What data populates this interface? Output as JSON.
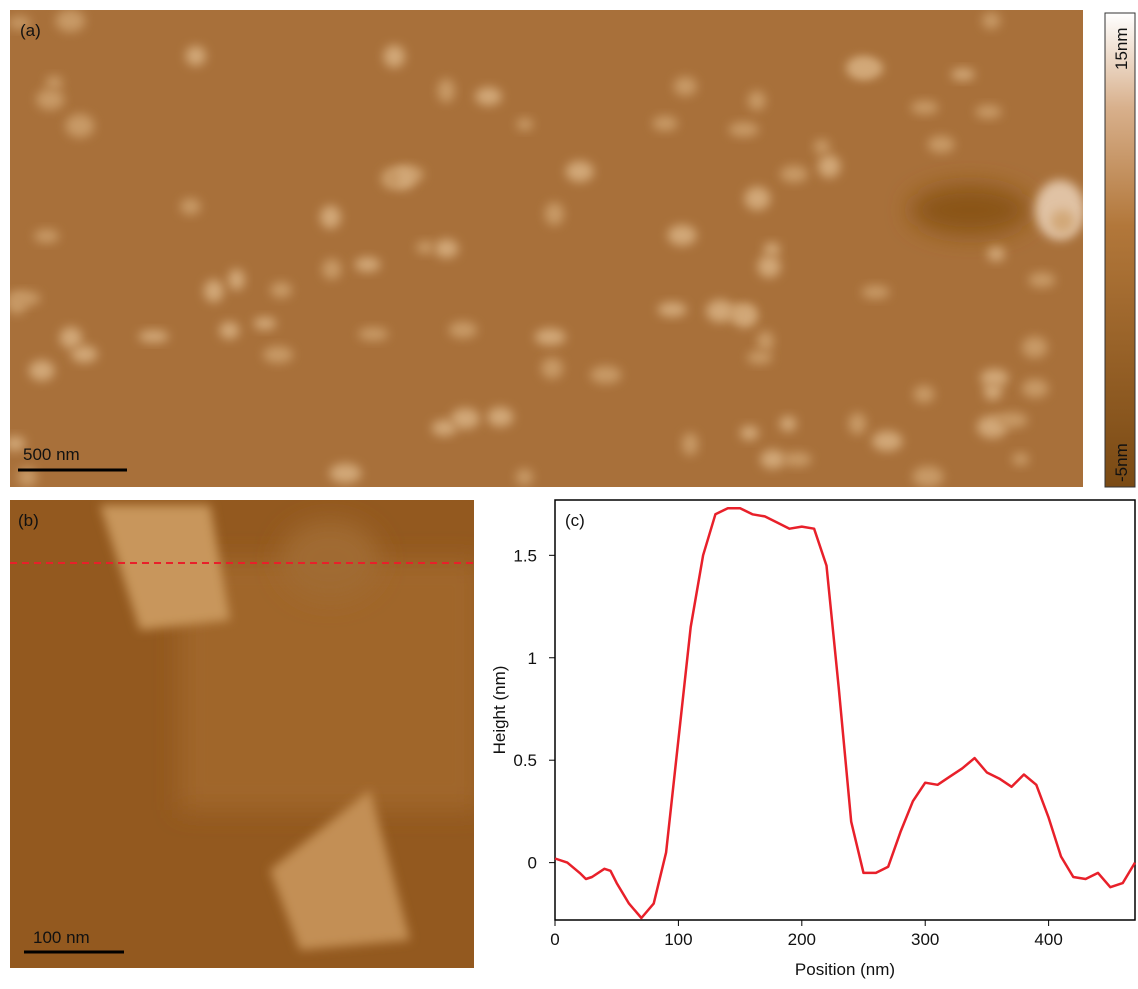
{
  "panels": {
    "a": {
      "label": "(a)",
      "scale_bar": "500 nm"
    },
    "b": {
      "label": "(b)",
      "scale_bar": "100 nm"
    }
  },
  "colorbar": {
    "max_label": "15nm",
    "min_label": "-5nm"
  },
  "chart_data": {
    "type": "line",
    "label": "(c)",
    "xlabel": "Position (nm)",
    "ylabel": "Height (nm)",
    "x": [
      0,
      10,
      20,
      25,
      30,
      40,
      45,
      50,
      60,
      70,
      80,
      90,
      100,
      110,
      120,
      130,
      140,
      150,
      160,
      170,
      180,
      190,
      200,
      210,
      220,
      230,
      240,
      250,
      260,
      270,
      280,
      290,
      300,
      310,
      320,
      330,
      340,
      350,
      360,
      370,
      380,
      390,
      400,
      410,
      420,
      430,
      440,
      450,
      460,
      470
    ],
    "values": [
      0.02,
      0.0,
      -0.05,
      -0.08,
      -0.07,
      -0.03,
      -0.04,
      -0.1,
      -0.2,
      -0.27,
      -0.2,
      0.05,
      0.6,
      1.15,
      1.5,
      1.7,
      1.73,
      1.73,
      1.7,
      1.69,
      1.66,
      1.63,
      1.64,
      1.63,
      1.45,
      0.85,
      0.2,
      -0.05,
      -0.05,
      -0.02,
      0.15,
      0.3,
      0.39,
      0.38,
      0.42,
      0.46,
      0.51,
      0.44,
      0.41,
      0.37,
      0.43,
      0.38,
      0.22,
      0.03,
      -0.07,
      -0.08,
      -0.05,
      -0.12,
      -0.1,
      0.0
    ],
    "color": "#e8202a",
    "xlim": [
      0,
      470
    ],
    "ylim": [
      -0.28,
      1.77
    ],
    "xticks": [
      0,
      100,
      200,
      300,
      400
    ],
    "yticks": [
      0,
      0.5,
      1,
      1.5
    ]
  }
}
